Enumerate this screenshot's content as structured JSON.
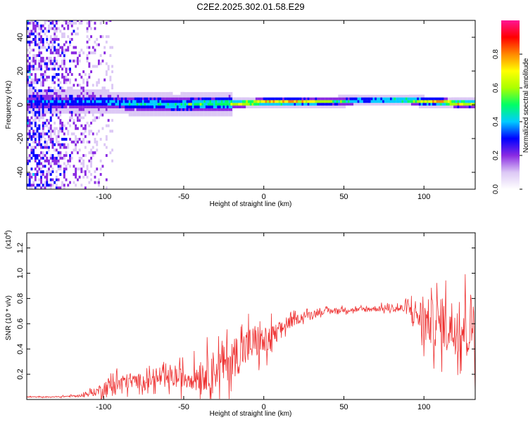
{
  "chart_data": [
    {
      "type": "heatmap",
      "title": "C2E2.2025.302.01.58.E29",
      "xlabel": "Height of straight line (km)",
      "ylabel": "Frequency (Hz)",
      "xlim": [
        -148,
        132
      ],
      "ylim": [
        -50,
        50
      ],
      "x_ticks": [
        {
          "value": -100,
          "label": "-100"
        },
        {
          "value": -50,
          "label": "-50"
        },
        {
          "value": 0,
          "label": "0"
        },
        {
          "value": 50,
          "label": "50"
        },
        {
          "value": 100,
          "label": "100"
        }
      ],
      "y_ticks": [
        {
          "value": -40,
          "label": "-40"
        },
        {
          "value": -20,
          "label": "-20"
        },
        {
          "value": 0,
          "label": "0"
        },
        {
          "value": 20,
          "label": "20"
        },
        {
          "value": 40,
          "label": "40"
        }
      ],
      "colorbar": {
        "label": "Normalized spectral amplitude",
        "range": [
          0,
          1
        ],
        "ticks": [
          {
            "value": 0.0,
            "label": "0.0"
          },
          {
            "value": 0.2,
            "label": "0.2"
          },
          {
            "value": 0.4,
            "label": "0.4"
          },
          {
            "value": 0.6,
            "label": "0.6"
          },
          {
            "value": 0.8,
            "label": "0.8"
          }
        ],
        "colors": [
          "#ffffff",
          "#dcc8f5",
          "#8a2be2",
          "#0000ff",
          "#00ccff",
          "#00ff66",
          "#aaff00",
          "#ffff00",
          "#ff8800",
          "#ff0000",
          "#ff1493"
        ]
      },
      "ridge": {
        "description_free": true,
        "x": [
          -115,
          -100,
          -85,
          -70,
          -55,
          -40,
          -25,
          -15,
          0,
          10,
          25,
          45,
          60,
          75,
          90,
          100,
          110,
          120,
          132
        ],
        "center": [
          1,
          1,
          0,
          0,
          -1,
          0,
          0,
          0,
          1,
          1,
          1,
          1,
          2,
          2,
          2,
          1,
          1,
          0,
          0
        ],
        "peak_amplitude": [
          0.4,
          0.45,
          0.5,
          0.55,
          0.55,
          0.6,
          0.6,
          0.85,
          0.85,
          0.9,
          0.85,
          0.6,
          0.55,
          0.6,
          0.7,
          0.85,
          0.9,
          0.9,
          0.85
        ]
      }
    },
    {
      "type": "line",
      "xlabel": "Height of straight line (km)",
      "ylabel": "SNR (10 * v/v)",
      "y_multiplier": "(x10",
      "y_multiplier_exp": "4",
      "y_multiplier_close": ")",
      "xlim": [
        -148,
        132
      ],
      "ylim": [
        0,
        1.32
      ],
      "x_ticks": [
        {
          "value": -100,
          "label": "-100"
        },
        {
          "value": -50,
          "label": "-50"
        },
        {
          "value": 0,
          "label": "0"
        },
        {
          "value": 50,
          "label": "50"
        },
        {
          "value": 100,
          "label": "100"
        }
      ],
      "y_ticks": [
        {
          "value": 0.2,
          "label": "0.2"
        },
        {
          "value": 0.4,
          "label": "0.4"
        },
        {
          "value": 0.6,
          "label": "0.6"
        },
        {
          "value": 0.8,
          "label": "0.8"
        },
        {
          "value": 1.0,
          "label": "1.0"
        },
        {
          "value": 1.2,
          "label": "1.2"
        }
      ],
      "series": [
        {
          "color": "#ee3333",
          "x": [
            -148,
            -130,
            -115,
            -105,
            -95,
            -85,
            -75,
            -65,
            -55,
            -45,
            -35,
            -28,
            -20,
            -12,
            -5,
            0,
            5,
            10,
            15,
            20,
            25,
            30,
            40,
            50,
            60,
            70,
            80,
            90,
            95,
            100,
            110,
            120,
            125,
            130,
            132
          ],
          "mean": [
            0.02,
            0.02,
            0.03,
            0.06,
            0.12,
            0.14,
            0.15,
            0.16,
            0.17,
            0.18,
            0.22,
            0.25,
            0.32,
            0.4,
            0.46,
            0.45,
            0.47,
            0.55,
            0.6,
            0.63,
            0.66,
            0.68,
            0.7,
            0.71,
            0.71,
            0.72,
            0.72,
            0.72,
            0.68,
            0.62,
            0.6,
            0.58,
            0.58,
            0.6,
            0.6
          ],
          "spread": [
            0.005,
            0.005,
            0.01,
            0.04,
            0.1,
            0.08,
            0.07,
            0.08,
            0.1,
            0.12,
            0.18,
            0.2,
            0.2,
            0.2,
            0.18,
            0.15,
            0.15,
            0.08,
            0.06,
            0.05,
            0.04,
            0.03,
            0.025,
            0.025,
            0.025,
            0.03,
            0.03,
            0.06,
            0.15,
            0.22,
            0.25,
            0.28,
            0.3,
            0.33,
            0.35
          ]
        }
      ]
    }
  ]
}
